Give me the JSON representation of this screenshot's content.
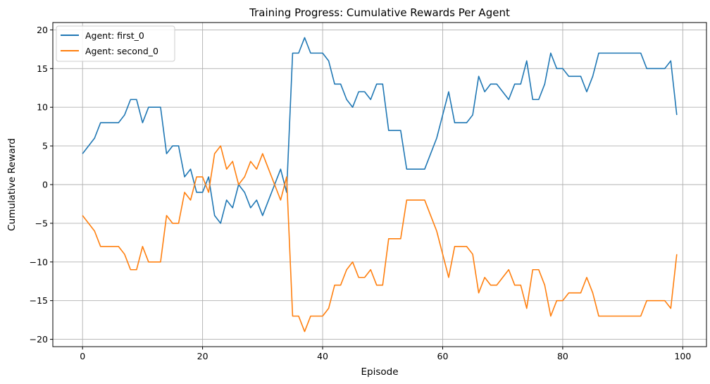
{
  "chart_data": {
    "type": "line",
    "title": "Training Progress: Cumulative Rewards Per Agent",
    "xlabel": "Episode",
    "ylabel": "Cumulative Reward",
    "xlim": [
      -4.95,
      103.95
    ],
    "ylim": [
      -20.95,
      20.95
    ],
    "xticks": [
      0,
      20,
      40,
      60,
      80,
      100
    ],
    "yticks": [
      -20,
      -15,
      -10,
      -5,
      0,
      5,
      10,
      15,
      20
    ],
    "grid": true,
    "legend_position": "top-left",
    "x": [
      0,
      1,
      2,
      3,
      4,
      5,
      6,
      7,
      8,
      9,
      10,
      11,
      12,
      13,
      14,
      15,
      16,
      17,
      18,
      19,
      20,
      21,
      22,
      23,
      24,
      25,
      26,
      27,
      28,
      29,
      30,
      31,
      32,
      33,
      34,
      35,
      36,
      37,
      38,
      39,
      40,
      41,
      42,
      43,
      44,
      45,
      46,
      47,
      48,
      49,
      50,
      51,
      52,
      53,
      54,
      55,
      56,
      57,
      58,
      59,
      60,
      61,
      62,
      63,
      64,
      65,
      66,
      67,
      68,
      69,
      70,
      71,
      72,
      73,
      74,
      75,
      76,
      77,
      78,
      79,
      80,
      81,
      82,
      83,
      84,
      85,
      86,
      87,
      88,
      89,
      90,
      91,
      92,
      93,
      94,
      95,
      96,
      97,
      98,
      99
    ],
    "series": [
      {
        "name": "Agent: first_0",
        "color": "#1f77b4",
        "values": [
          4,
          5,
          6,
          8,
          8,
          8,
          8,
          9,
          11,
          11,
          8,
          10,
          10,
          10,
          4,
          5,
          5,
          1,
          2,
          -1,
          -1,
          1,
          -4,
          -5,
          -2,
          -3,
          0,
          -1,
          -3,
          -2,
          -4,
          -2,
          0,
          2,
          -1,
          17,
          17,
          19,
          17,
          17,
          17,
          16,
          13,
          13,
          11,
          10,
          12,
          12,
          11,
          13,
          13,
          7,
          7,
          7,
          2,
          2,
          2,
          2,
          4,
          6,
          9,
          12,
          8,
          8,
          8,
          9,
          14,
          12,
          13,
          13,
          12,
          11,
          13,
          13,
          16,
          11,
          11,
          13,
          17,
          15,
          15,
          14,
          14,
          14,
          12,
          14,
          17,
          17,
          17,
          17,
          17,
          17,
          17,
          17,
          15,
          15,
          15,
          15,
          16,
          9
        ]
      },
      {
        "name": "Agent: second_0",
        "color": "#ff7f0e",
        "values": [
          -4,
          -5,
          -6,
          -8,
          -8,
          -8,
          -8,
          -9,
          -11,
          -11,
          -8,
          -10,
          -10,
          -10,
          -4,
          -5,
          -5,
          -1,
          -2,
          1,
          1,
          -1,
          4,
          5,
          2,
          3,
          0,
          1,
          3,
          2,
          4,
          2,
          0,
          -2,
          1,
          -17,
          -17,
          -19,
          -17,
          -17,
          -17,
          -16,
          -13,
          -13,
          -11,
          -10,
          -12,
          -12,
          -11,
          -13,
          -13,
          -7,
          -7,
          -7,
          -2,
          -2,
          -2,
          -2,
          -4,
          -6,
          -9,
          -12,
          -8,
          -8,
          -8,
          -9,
          -14,
          -12,
          -13,
          -13,
          -12,
          -11,
          -13,
          -13,
          -16,
          -11,
          -11,
          -13,
          -17,
          -15,
          -15,
          -14,
          -14,
          -14,
          -12,
          -14,
          -17,
          -17,
          -17,
          -17,
          -17,
          -17,
          -17,
          -17,
          -15,
          -15,
          -15,
          -15,
          -16,
          -9
        ]
      }
    ]
  }
}
